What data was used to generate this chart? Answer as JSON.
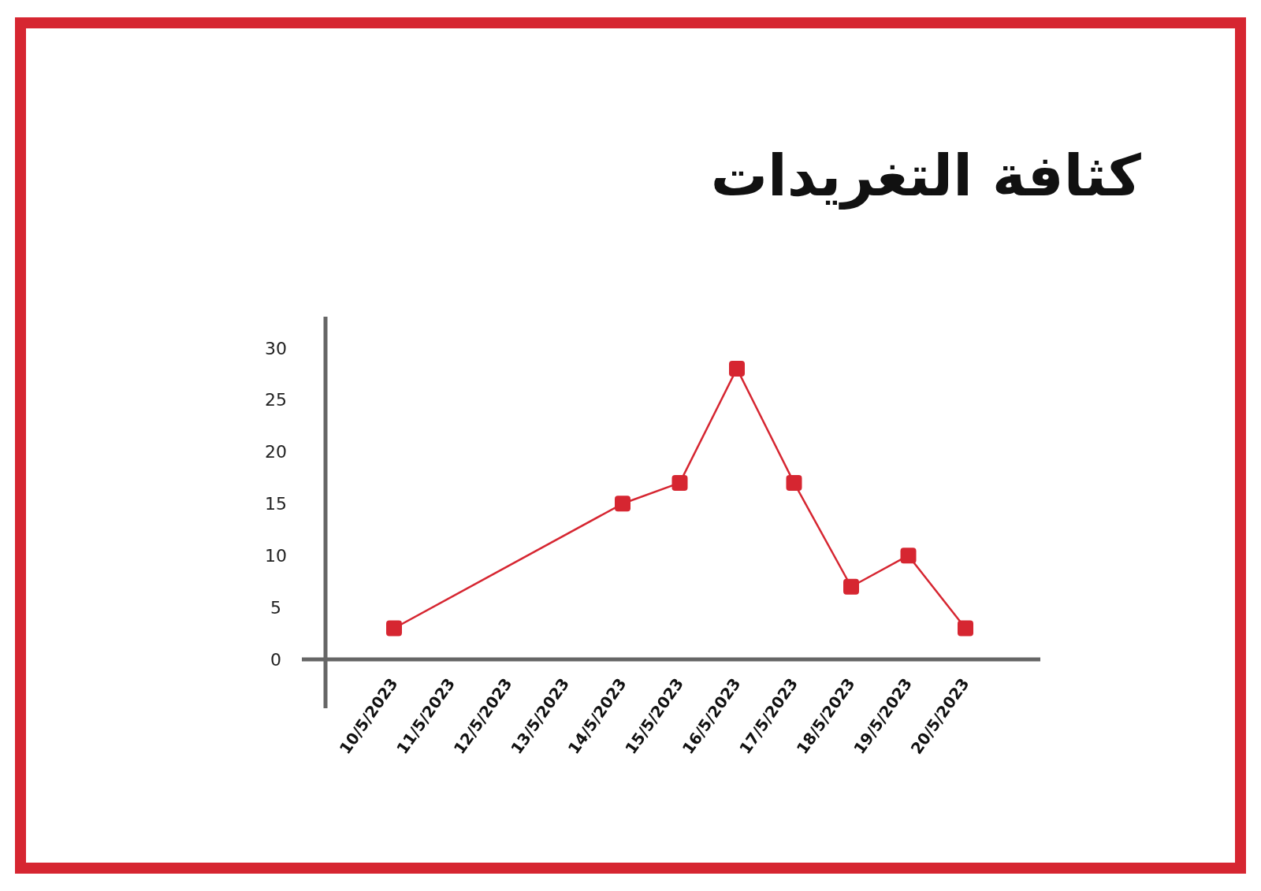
{
  "chart_data": {
    "type": "line",
    "title": "كثافة التغريدات",
    "categories": [
      "10/5/2023",
      "11/5/2023",
      "12/5/2023",
      "13/5/2023",
      "14/5/2023",
      "15/5/2023",
      "16/5/2023",
      "17/5/2023",
      "18/5/2023",
      "19/5/2023",
      "20/5/2023"
    ],
    "series": [
      {
        "color": "#d62631",
        "x": [
          "10/5/2023",
          "14/5/2023",
          "15/5/2023",
          "16/5/2023",
          "17/5/2023",
          "18/5/2023",
          "19/5/2023",
          "20/5/2023"
        ],
        "values": [
          3,
          15,
          17,
          28,
          17,
          7,
          10,
          3
        ]
      }
    ],
    "ylim": [
      -4.7,
      33
    ],
    "yticks": [
      0,
      5,
      10,
      15,
      20,
      25,
      30
    ],
    "marker": "square",
    "grid": false
  }
}
